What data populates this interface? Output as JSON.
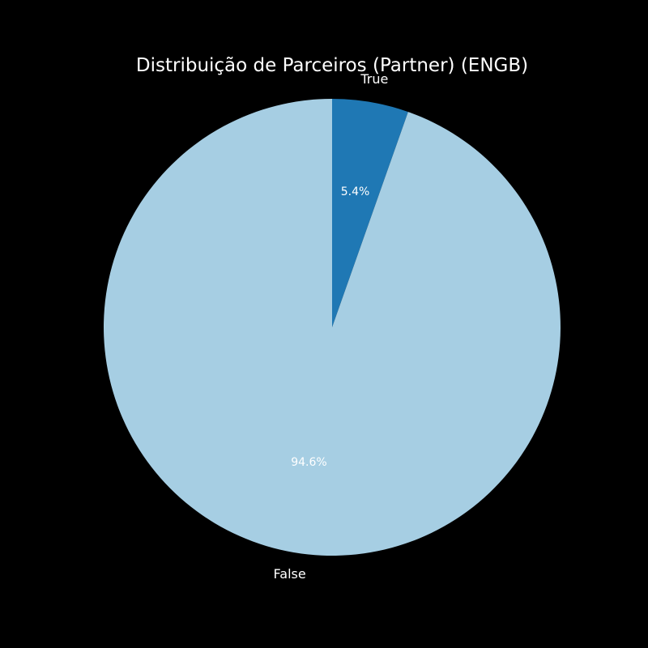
{
  "chart_data": {
    "type": "pie",
    "title": "Distribuição de Parceiros (Partner) (ENGB)",
    "slices": [
      {
        "label": "True",
        "value": 5.4,
        "pct_label": "5.4%",
        "color": "#1f78b4"
      },
      {
        "label": "False",
        "value": 94.6,
        "pct_label": "94.6%",
        "color": "#a6cee3"
      }
    ],
    "start_angle_deg": 90,
    "direction": "clockwise",
    "background": "#000000",
    "text_color": "#ffffff"
  }
}
